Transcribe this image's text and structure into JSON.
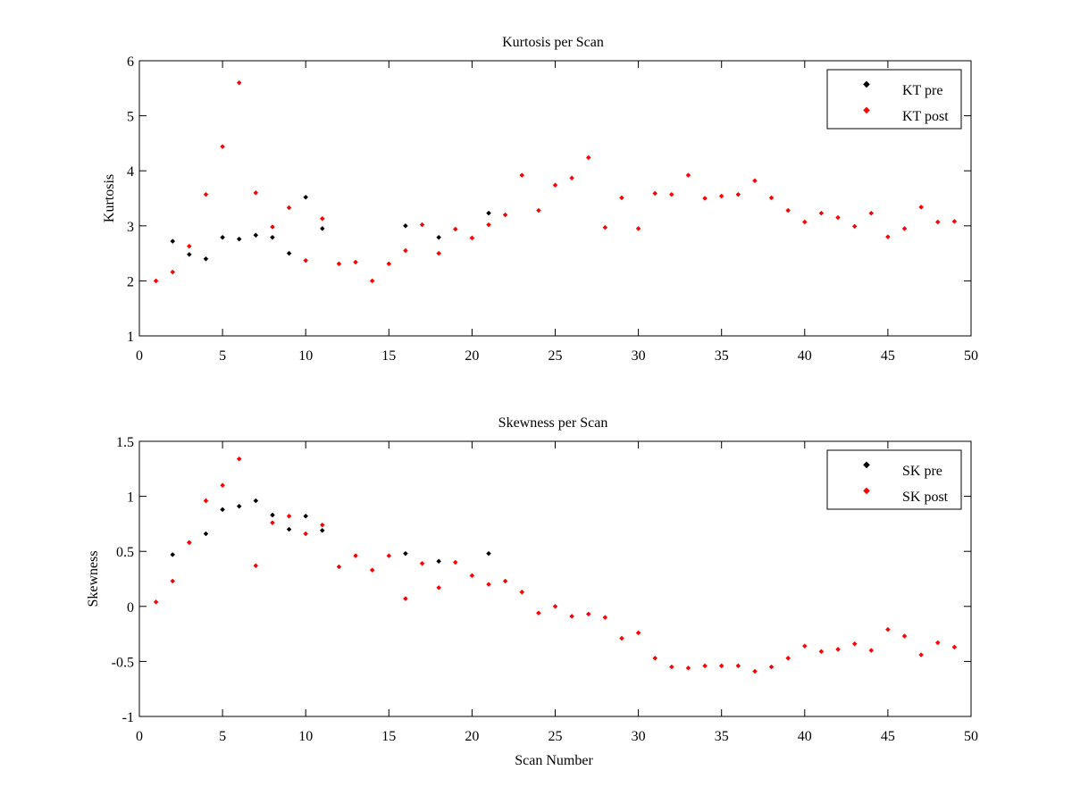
{
  "chart_data": [
    {
      "type": "scatter",
      "title": "Kurtosis per Scan",
      "xlabel": "",
      "ylabel": "Kurtosis",
      "xlim": [
        0,
        50
      ],
      "ylim": [
        1,
        6
      ],
      "xticks": [
        "0",
        "5",
        "10",
        "15",
        "20",
        "25",
        "30",
        "35",
        "40",
        "45",
        "50"
      ],
      "yticks": [
        "1",
        "2",
        "3",
        "4",
        "5",
        "6"
      ],
      "grid": false,
      "legend_position": "top-right",
      "series": [
        {
          "name": "KT pre",
          "color": "#000000",
          "points": [
            [
              2,
              2.72
            ],
            [
              3,
              2.48
            ],
            [
              4,
              2.4
            ],
            [
              5,
              2.79
            ],
            [
              6,
              2.76
            ],
            [
              7,
              2.83
            ],
            [
              8,
              2.79
            ],
            [
              9,
              2.5
            ],
            [
              10,
              3.52
            ],
            [
              11,
              2.95
            ],
            [
              16,
              3.0
            ],
            [
              18,
              2.79
            ],
            [
              21,
              3.23
            ]
          ]
        },
        {
          "name": "KT post",
          "color": "#ff0000",
          "points": [
            [
              1,
              2.0
            ],
            [
              2,
              2.16
            ],
            [
              3,
              2.63
            ],
            [
              4,
              3.57
            ],
            [
              5,
              4.44
            ],
            [
              6,
              5.6
            ],
            [
              7,
              3.6
            ],
            [
              8,
              2.98
            ],
            [
              9,
              3.33
            ],
            [
              10,
              2.37
            ],
            [
              11,
              3.13
            ],
            [
              12,
              2.31
            ],
            [
              13,
              2.34
            ],
            [
              14,
              2.0
            ],
            [
              15,
              2.31
            ],
            [
              16,
              2.55
            ],
            [
              17,
              3.02
            ],
            [
              18,
              2.5
            ],
            [
              19,
              2.94
            ],
            [
              20,
              2.78
            ],
            [
              21,
              3.02
            ],
            [
              22,
              3.2
            ],
            [
              23,
              3.92
            ],
            [
              24,
              3.28
            ],
            [
              25,
              3.74
            ],
            [
              26,
              3.87
            ],
            [
              27,
              4.24
            ],
            [
              28,
              2.97
            ],
            [
              29,
              3.51
            ],
            [
              30,
              2.95
            ],
            [
              31,
              3.59
            ],
            [
              32,
              3.57
            ],
            [
              33,
              3.92
            ],
            [
              34,
              3.5
            ],
            [
              35,
              3.54
            ],
            [
              36,
              3.57
            ],
            [
              37,
              3.82
            ],
            [
              38,
              3.51
            ],
            [
              39,
              3.28
            ],
            [
              40,
              3.07
            ],
            [
              41,
              3.23
            ],
            [
              42,
              3.15
            ],
            [
              43,
              2.99
            ],
            [
              44,
              3.23
            ],
            [
              45,
              2.8
            ],
            [
              46,
              2.95
            ],
            [
              47,
              3.34
            ],
            [
              48,
              3.07
            ],
            [
              49,
              3.08
            ]
          ]
        }
      ]
    },
    {
      "type": "scatter",
      "title": "Skewness per Scan",
      "xlabel": "Scan Number",
      "ylabel": "Skewness",
      "xlim": [
        0,
        50
      ],
      "ylim": [
        -1,
        1.5
      ],
      "xticks": [
        "0",
        "5",
        "10",
        "15",
        "20",
        "25",
        "30",
        "35",
        "40",
        "45",
        "50"
      ],
      "yticks": [
        "-1",
        "-0.5",
        "0",
        "0.5",
        "1",
        "1.5"
      ],
      "grid": false,
      "legend_position": "top-right",
      "series": [
        {
          "name": "SK pre",
          "color": "#000000",
          "points": [
            [
              2,
              0.47
            ],
            [
              3,
              0.58
            ],
            [
              4,
              0.66
            ],
            [
              5,
              0.88
            ],
            [
              6,
              0.91
            ],
            [
              7,
              0.96
            ],
            [
              8,
              0.83
            ],
            [
              9,
              0.7
            ],
            [
              10,
              0.82
            ],
            [
              11,
              0.69
            ],
            [
              16,
              0.48
            ],
            [
              18,
              0.41
            ],
            [
              21,
              0.48
            ]
          ]
        },
        {
          "name": "SK post",
          "color": "#ff0000",
          "points": [
            [
              1,
              0.04
            ],
            [
              2,
              0.23
            ],
            [
              3,
              0.58
            ],
            [
              4,
              0.96
            ],
            [
              5,
              1.1
            ],
            [
              6,
              1.34
            ],
            [
              7,
              0.37
            ],
            [
              8,
              0.76
            ],
            [
              9,
              0.82
            ],
            [
              10,
              0.66
            ],
            [
              11,
              0.74
            ],
            [
              12,
              0.36
            ],
            [
              13,
              0.46
            ],
            [
              14,
              0.33
            ],
            [
              15,
              0.46
            ],
            [
              16,
              0.07
            ],
            [
              17,
              0.39
            ],
            [
              18,
              0.17
            ],
            [
              19,
              0.4
            ],
            [
              20,
              0.28
            ],
            [
              21,
              0.2
            ],
            [
              22,
              0.23
            ],
            [
              23,
              0.13
            ],
            [
              24,
              -0.06
            ],
            [
              25,
              0.0
            ],
            [
              26,
              -0.09
            ],
            [
              27,
              -0.07
            ],
            [
              28,
              -0.1
            ],
            [
              29,
              -0.29
            ],
            [
              30,
              -0.24
            ],
            [
              31,
              -0.47
            ],
            [
              32,
              -0.55
            ],
            [
              33,
              -0.56
            ],
            [
              34,
              -0.54
            ],
            [
              35,
              -0.54
            ],
            [
              36,
              -0.54
            ],
            [
              37,
              -0.59
            ],
            [
              38,
              -0.55
            ],
            [
              39,
              -0.47
            ],
            [
              40,
              -0.36
            ],
            [
              41,
              -0.41
            ],
            [
              42,
              -0.39
            ],
            [
              43,
              -0.34
            ],
            [
              44,
              -0.4
            ],
            [
              45,
              -0.21
            ],
            [
              46,
              -0.27
            ],
            [
              47,
              -0.44
            ],
            [
              48,
              -0.33
            ],
            [
              49,
              -0.37
            ]
          ]
        }
      ]
    }
  ]
}
